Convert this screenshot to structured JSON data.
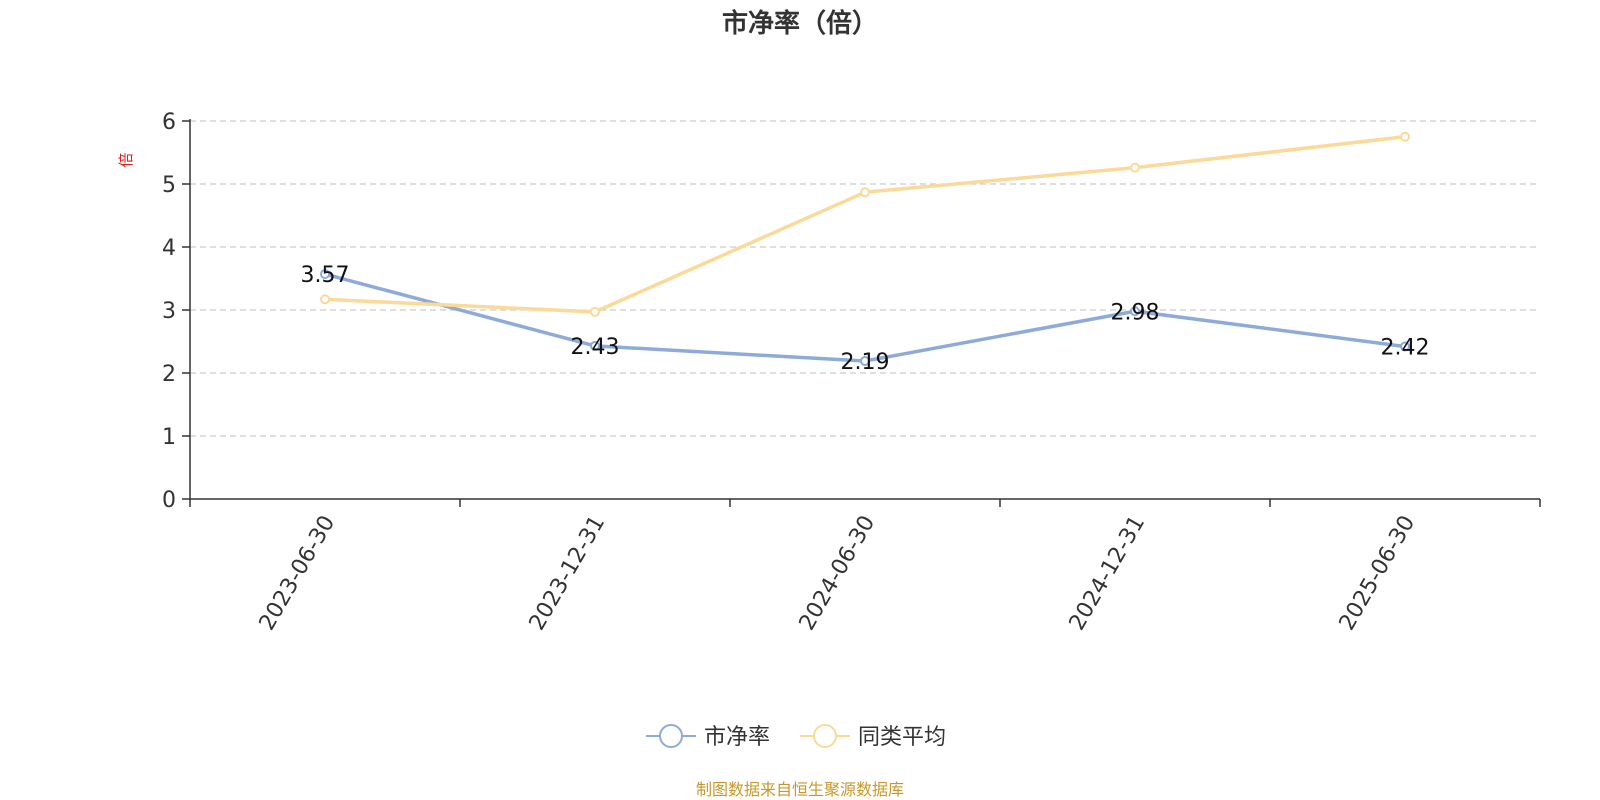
{
  "chart_data": {
    "type": "line",
    "title": "市净率（倍）",
    "ylabel": "倍",
    "categories": [
      "2023-06-30",
      "2023-12-31",
      "2024-06-30",
      "2024-12-31",
      "2025-06-30"
    ],
    "ylim": [
      0,
      6
    ],
    "yticks": [
      0,
      1,
      2,
      3,
      4,
      5,
      6
    ],
    "grid": true,
    "legend_position": "bottom-center",
    "series": [
      {
        "name": "市净率",
        "color": "#8eaad8",
        "values": [
          3.57,
          2.43,
          2.19,
          2.98,
          2.42
        ],
        "show_labels": true
      },
      {
        "name": "同类平均",
        "color": "#fbd998",
        "values": [
          3.17,
          2.97,
          4.87,
          5.26,
          5.75
        ],
        "show_labels": false
      }
    ]
  },
  "source_note": "制图数据来自恒生聚源数据库"
}
